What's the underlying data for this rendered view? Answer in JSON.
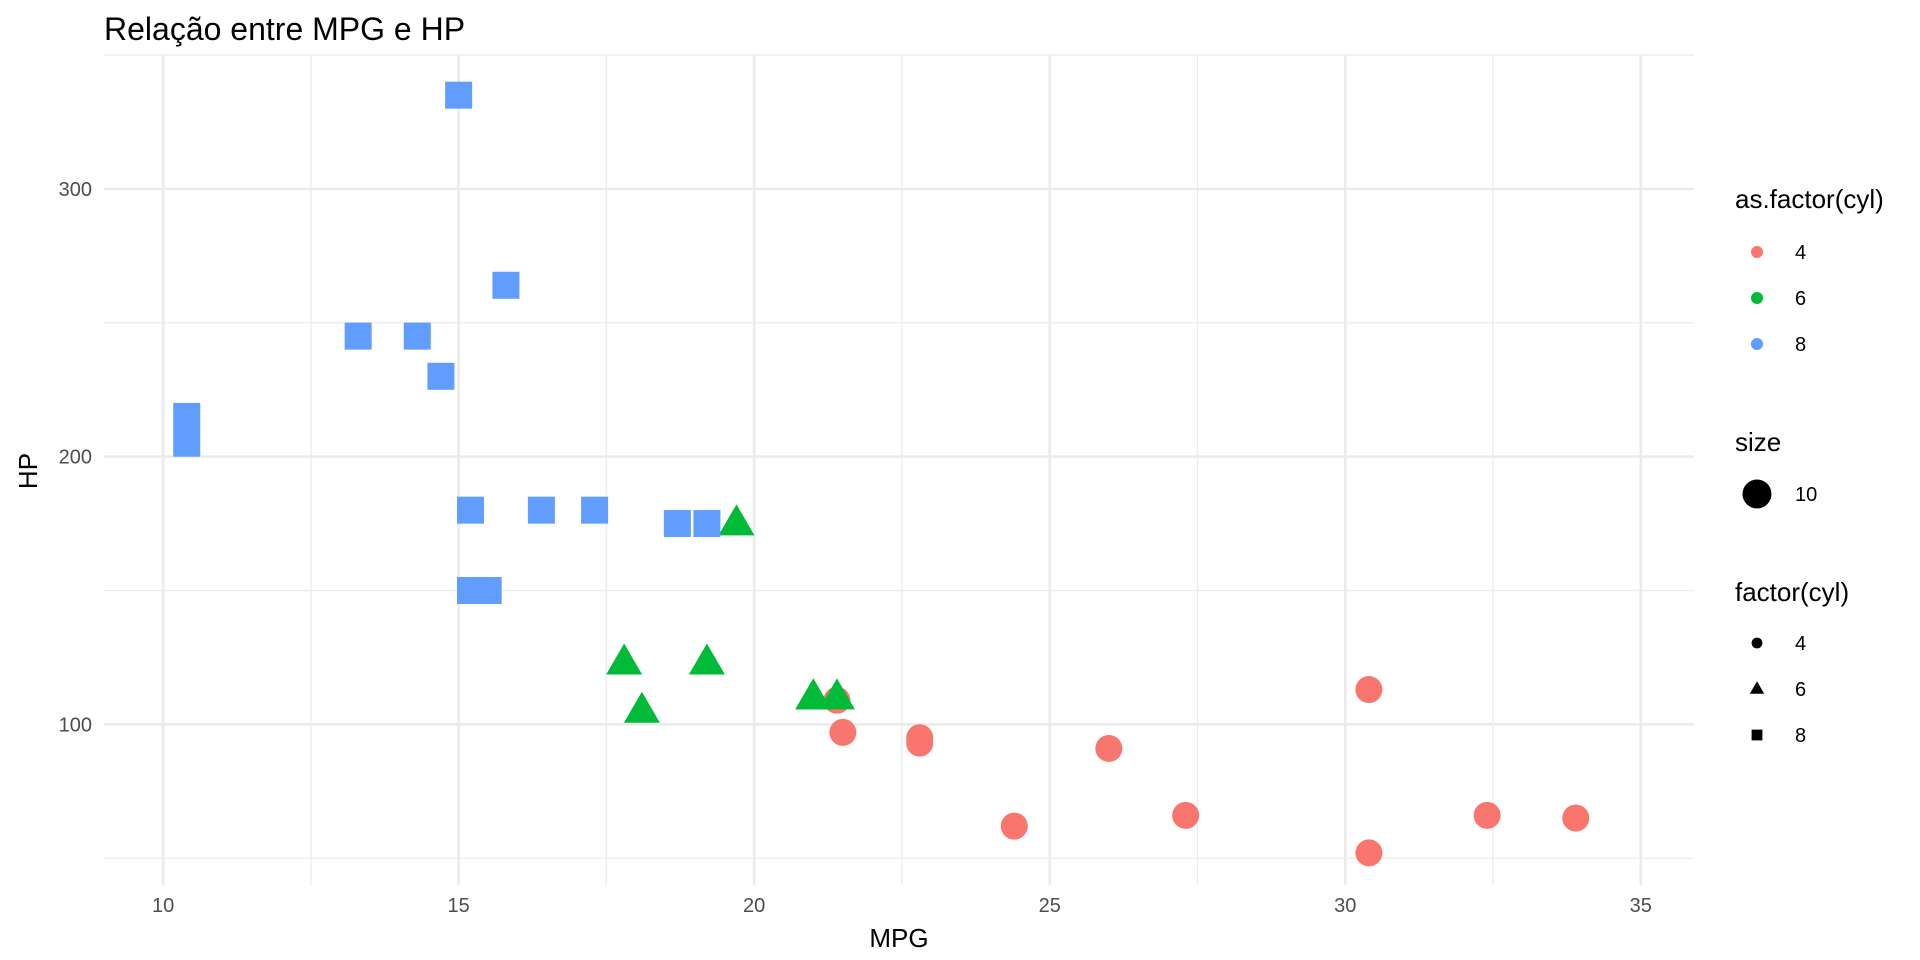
{
  "chart_data": {
    "type": "scatter",
    "title": "Relação entre MPG e HP",
    "xlabel": "MPG",
    "ylabel": "HP",
    "xlim": [
      9,
      35.9
    ],
    "ylim": [
      40,
      350
    ],
    "x_ticks": [
      10,
      15,
      20,
      25,
      30,
      35
    ],
    "y_ticks": [
      100,
      200,
      300
    ],
    "grid": true,
    "legend_position": "right",
    "colors": {
      "4": "#F8766D",
      "6": "#00BA38",
      "8": "#619CFF"
    },
    "shapes": {
      "4": "circle",
      "6": "triangle",
      "8": "square"
    },
    "series": [
      {
        "name": "4",
        "points": [
          [
            22.8,
            93
          ],
          [
            24.4,
            62
          ],
          [
            22.8,
            95
          ],
          [
            32.4,
            66
          ],
          [
            30.4,
            52
          ],
          [
            33.9,
            65
          ],
          [
            21.5,
            97
          ],
          [
            27.3,
            66
          ],
          [
            26.0,
            91
          ],
          [
            30.4,
            113
          ],
          [
            21.4,
            109
          ]
        ]
      },
      {
        "name": "6",
        "points": [
          [
            21.0,
            110
          ],
          [
            21.0,
            110
          ],
          [
            21.4,
            110
          ],
          [
            18.1,
            105
          ],
          [
            19.2,
            123
          ],
          [
            17.8,
            123
          ],
          [
            19.7,
            175
          ]
        ]
      },
      {
        "name": "8",
        "points": [
          [
            18.7,
            175
          ],
          [
            14.3,
            245
          ],
          [
            16.4,
            180
          ],
          [
            17.3,
            180
          ],
          [
            15.2,
            180
          ],
          [
            10.4,
            205
          ],
          [
            10.4,
            215
          ],
          [
            14.7,
            230
          ],
          [
            15.5,
            150
          ],
          [
            15.2,
            150
          ],
          [
            13.3,
            245
          ],
          [
            19.2,
            175
          ],
          [
            15.8,
            264
          ],
          [
            15.0,
            335
          ]
        ]
      }
    ],
    "legends": [
      {
        "title": "as.factor(cyl)",
        "kind": "color",
        "items": [
          "4",
          "6",
          "8"
        ]
      },
      {
        "title": "size",
        "kind": "size",
        "items": [
          "10"
        ]
      },
      {
        "title": "factor(cyl)",
        "kind": "shape",
        "items": [
          "4",
          "6",
          "8"
        ]
      }
    ]
  }
}
